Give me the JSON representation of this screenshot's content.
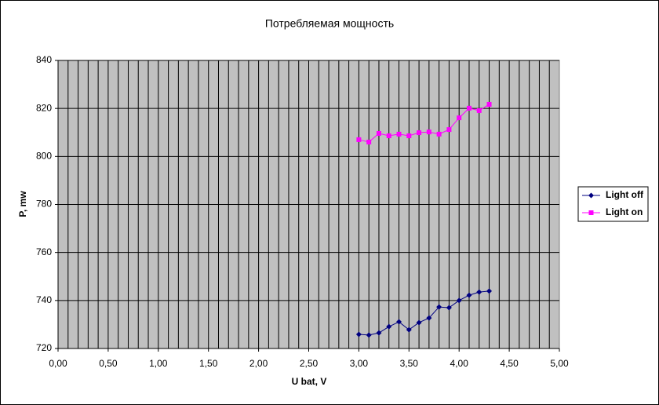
{
  "chart_data": {
    "type": "line",
    "title": "Потребляемая мощность",
    "x_label": "U bat, V",
    "y_label": "P, mw",
    "x": [
      3.0,
      3.1,
      3.2,
      3.3,
      3.4,
      3.5,
      3.6,
      3.7,
      3.8,
      3.9,
      4.0,
      4.1,
      4.2,
      4.3
    ],
    "series": [
      {
        "name": "Light off",
        "color": "#000080",
        "marker": "diamond",
        "values": [
          725.9,
          725.6,
          726.5,
          729.1,
          731.1,
          727.8,
          730.8,
          732.7,
          737.3,
          737.0,
          740.0,
          742.2,
          743.5,
          743.9
        ]
      },
      {
        "name": "Light on",
        "color": "#ff00ff",
        "marker": "square",
        "values": [
          807.0,
          806.0,
          809.6,
          808.6,
          809.3,
          808.6,
          809.9,
          810.2,
          809.3,
          811.2,
          816.1,
          820.1,
          819.1,
          821.7
        ]
      }
    ],
    "xlim": [
      0,
      5
    ],
    "ylim": [
      720,
      840
    ],
    "xticks": [
      {
        "value": 0,
        "label": "0,00"
      },
      {
        "value": 0.5,
        "label": "0,50"
      },
      {
        "value": 1,
        "label": "1,00"
      },
      {
        "value": 1.5,
        "label": "1,50"
      },
      {
        "value": 2,
        "label": "2,00"
      },
      {
        "value": 2.5,
        "label": "2,50"
      },
      {
        "value": 3,
        "label": "3,00"
      },
      {
        "value": 3.5,
        "label": "3,50"
      },
      {
        "value": 4,
        "label": "4,00"
      },
      {
        "value": 4.5,
        "label": "4,50"
      },
      {
        "value": 5,
        "label": "5,00"
      }
    ],
    "yticks": [
      720,
      740,
      760,
      780,
      800,
      820,
      840
    ],
    "x_grid_step": 0.1,
    "grid": true,
    "plot_background": "#c0c0c0",
    "legend": "right"
  }
}
